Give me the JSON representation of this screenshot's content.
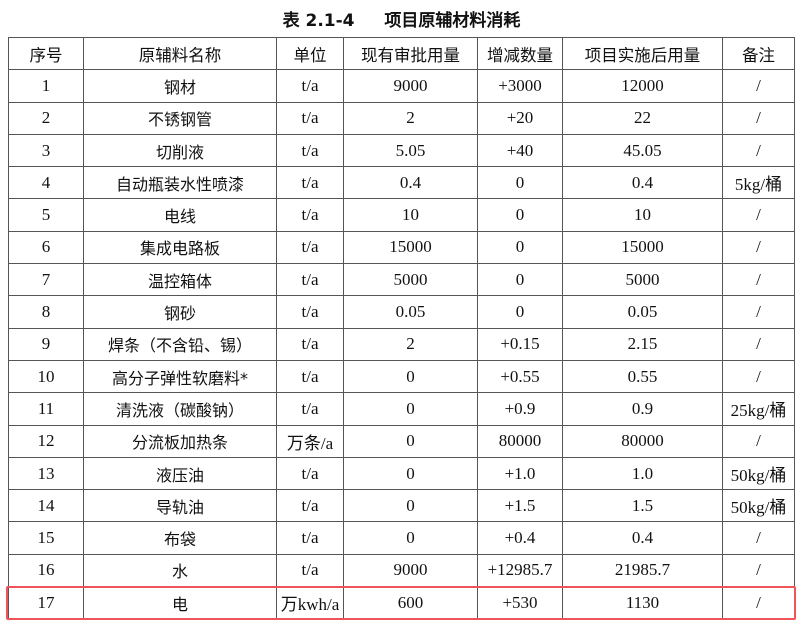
{
  "title": {
    "number": "表 2.1-4",
    "text": "项目原辅材料消耗"
  },
  "columns": [
    "序号",
    "原辅料名称",
    "单位",
    "现有审批用量",
    "增减数量",
    "项目实施后用量",
    "备注"
  ],
  "rows": [
    [
      "1",
      "钢材",
      "t/a",
      "9000",
      "+3000",
      "12000",
      "/"
    ],
    [
      "2",
      "不锈钢管",
      "t/a",
      "2",
      "+20",
      "22",
      "/"
    ],
    [
      "3",
      "切削液",
      "t/a",
      "5.05",
      "+40",
      "45.05",
      "/"
    ],
    [
      "4",
      "自动瓶装水性喷漆",
      "t/a",
      "0.4",
      "0",
      "0.4",
      "5kg/桶"
    ],
    [
      "5",
      "电线",
      "t/a",
      "10",
      "0",
      "10",
      "/"
    ],
    [
      "6",
      "集成电路板",
      "t/a",
      "15000",
      "0",
      "15000",
      "/"
    ],
    [
      "7",
      "温控箱体",
      "t/a",
      "5000",
      "0",
      "5000",
      "/"
    ],
    [
      "8",
      "钢砂",
      "t/a",
      "0.05",
      "0",
      "0.05",
      "/"
    ],
    [
      "9",
      "焊条（不含铅、锡）",
      "t/a",
      "2",
      "+0.15",
      "2.15",
      "/"
    ],
    [
      "10",
      "高分子弹性软磨料*",
      "t/a",
      "0",
      "+0.55",
      "0.55",
      "/"
    ],
    [
      "11",
      "清洗液（碳酸钠）",
      "t/a",
      "0",
      "+0.9",
      "0.9",
      "25kg/桶"
    ],
    [
      "12",
      "分流板加热条",
      "万条/a",
      "0",
      "80000",
      "80000",
      "/"
    ],
    [
      "13",
      "液压油",
      "t/a",
      "0",
      "+1.0",
      "1.0",
      "50kg/桶"
    ],
    [
      "14",
      "导轨油",
      "t/a",
      "0",
      "+1.5",
      "1.5",
      "50kg/桶"
    ],
    [
      "15",
      "布袋",
      "t/a",
      "0",
      "+0.4",
      "0.4",
      "/"
    ],
    [
      "16",
      "水",
      "t/a",
      "9000",
      "+12985.7",
      "21985.7",
      "/"
    ],
    [
      "17",
      "电",
      "万kwh/a",
      "600",
      "+530",
      "1130",
      "/"
    ]
  ],
  "highlight_color": "#f0545a"
}
